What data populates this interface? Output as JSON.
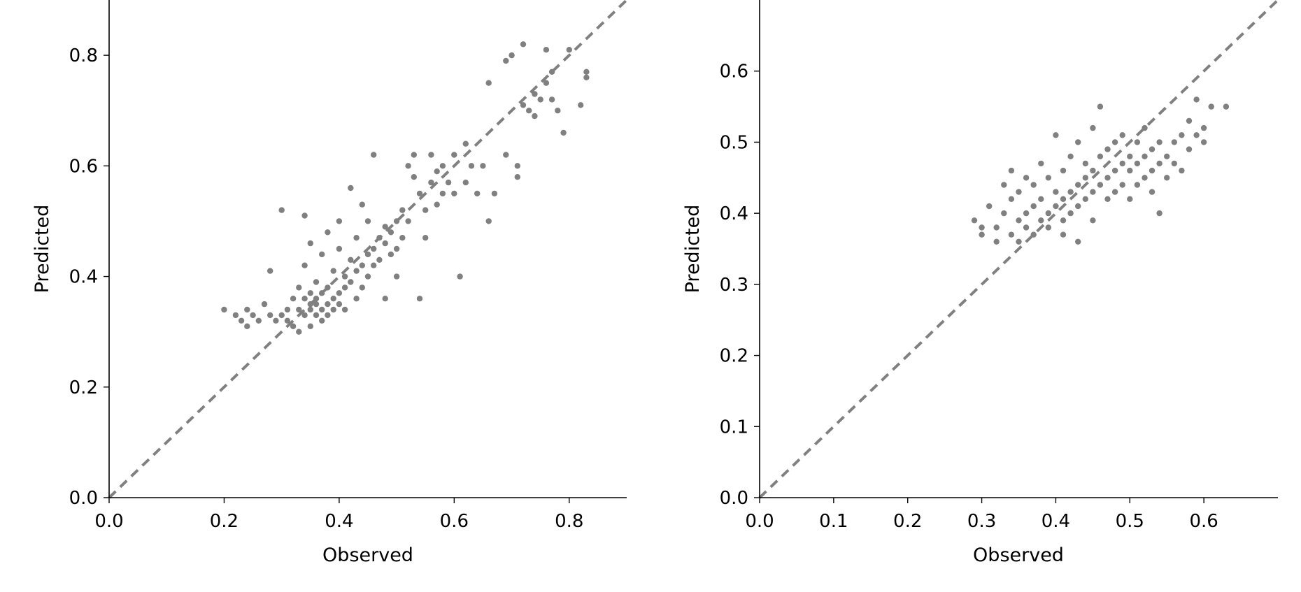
{
  "chart_data": [
    {
      "type": "scatter",
      "title": "",
      "xlabel": "Observed",
      "ylabel": "Predicted",
      "xlim": [
        0.0,
        0.9
      ],
      "ylim": [
        0.0,
        0.9
      ],
      "xticks": [
        "0.0",
        "0.2",
        "0.4",
        "0.6",
        "0.8"
      ],
      "yticks": [
        "0.0",
        "0.2",
        "0.4",
        "0.6",
        "0.8"
      ],
      "xtick_values": [
        0.0,
        0.2,
        0.4,
        0.6,
        0.8
      ],
      "ytick_values": [
        0.0,
        0.2,
        0.4,
        0.6,
        0.8
      ],
      "grid": false,
      "reference_line": "y = x (dashed)",
      "colors": {
        "points": "#808080",
        "reference_line": "#808080",
        "axes": "#000000"
      },
      "series": [
        {
          "points": [
            [
              0.2,
              0.34
            ],
            [
              0.22,
              0.33
            ],
            [
              0.23,
              0.32
            ],
            [
              0.24,
              0.34
            ],
            [
              0.25,
              0.33
            ],
            [
              0.24,
              0.31
            ],
            [
              0.26,
              0.32
            ],
            [
              0.27,
              0.35
            ],
            [
              0.28,
              0.33
            ],
            [
              0.29,
              0.32
            ],
            [
              0.3,
              0.52
            ],
            [
              0.28,
              0.41
            ],
            [
              0.3,
              0.33
            ],
            [
              0.31,
              0.34
            ],
            [
              0.31,
              0.32
            ],
            [
              0.32,
              0.31
            ],
            [
              0.32,
              0.36
            ],
            [
              0.33,
              0.34
            ],
            [
              0.33,
              0.38
            ],
            [
              0.33,
              0.3
            ],
            [
              0.34,
              0.33
            ],
            [
              0.34,
              0.36
            ],
            [
              0.34,
              0.42
            ],
            [
              0.34,
              0.51
            ],
            [
              0.35,
              0.35
            ],
            [
              0.35,
              0.34
            ],
            [
              0.35,
              0.37
            ],
            [
              0.35,
              0.31
            ],
            [
              0.35,
              0.46
            ],
            [
              0.36,
              0.33
            ],
            [
              0.36,
              0.36
            ],
            [
              0.36,
              0.39
            ],
            [
              0.36,
              0.35
            ],
            [
              0.37,
              0.34
            ],
            [
              0.37,
              0.37
            ],
            [
              0.37,
              0.32
            ],
            [
              0.37,
              0.44
            ],
            [
              0.38,
              0.35
            ],
            [
              0.38,
              0.33
            ],
            [
              0.38,
              0.38
            ],
            [
              0.38,
              0.48
            ],
            [
              0.39,
              0.36
            ],
            [
              0.39,
              0.34
            ],
            [
              0.39,
              0.41
            ],
            [
              0.4,
              0.37
            ],
            [
              0.4,
              0.35
            ],
            [
              0.4,
              0.45
            ],
            [
              0.4,
              0.5
            ],
            [
              0.41,
              0.38
            ],
            [
              0.41,
              0.4
            ],
            [
              0.41,
              0.34
            ],
            [
              0.42,
              0.43
            ],
            [
              0.42,
              0.39
            ],
            [
              0.42,
              0.56
            ],
            [
              0.43,
              0.41
            ],
            [
              0.43,
              0.36
            ],
            [
              0.43,
              0.47
            ],
            [
              0.44,
              0.42
            ],
            [
              0.44,
              0.38
            ],
            [
              0.44,
              0.53
            ],
            [
              0.45,
              0.44
            ],
            [
              0.45,
              0.4
            ],
            [
              0.45,
              0.5
            ],
            [
              0.46,
              0.45
            ],
            [
              0.46,
              0.42
            ],
            [
              0.46,
              0.62
            ],
            [
              0.47,
              0.47
            ],
            [
              0.47,
              0.43
            ],
            [
              0.48,
              0.46
            ],
            [
              0.48,
              0.49
            ],
            [
              0.48,
              0.36
            ],
            [
              0.49,
              0.44
            ],
            [
              0.49,
              0.48
            ],
            [
              0.5,
              0.45
            ],
            [
              0.5,
              0.4
            ],
            [
              0.5,
              0.5
            ],
            [
              0.51,
              0.47
            ],
            [
              0.51,
              0.52
            ],
            [
              0.52,
              0.6
            ],
            [
              0.52,
              0.5
            ],
            [
              0.53,
              0.58
            ],
            [
              0.53,
              0.62
            ],
            [
              0.54,
              0.55
            ],
            [
              0.54,
              0.36
            ],
            [
              0.55,
              0.52
            ],
            [
              0.55,
              0.47
            ],
            [
              0.56,
              0.57
            ],
            [
              0.56,
              0.62
            ],
            [
              0.57,
              0.53
            ],
            [
              0.57,
              0.59
            ],
            [
              0.58,
              0.55
            ],
            [
              0.58,
              0.6
            ],
            [
              0.59,
              0.57
            ],
            [
              0.6,
              0.62
            ],
            [
              0.6,
              0.55
            ],
            [
              0.61,
              0.4
            ],
            [
              0.62,
              0.57
            ],
            [
              0.62,
              0.64
            ],
            [
              0.63,
              0.6
            ],
            [
              0.64,
              0.55
            ],
            [
              0.65,
              0.6
            ],
            [
              0.66,
              0.75
            ],
            [
              0.66,
              0.5
            ],
            [
              0.67,
              0.55
            ],
            [
              0.69,
              0.62
            ],
            [
              0.69,
              0.79
            ],
            [
              0.7,
              0.8
            ],
            [
              0.71,
              0.58
            ],
            [
              0.71,
              0.6
            ],
            [
              0.72,
              0.71
            ],
            [
              0.72,
              0.82
            ],
            [
              0.73,
              0.7
            ],
            [
              0.74,
              0.73
            ],
            [
              0.74,
              0.69
            ],
            [
              0.75,
              0.72
            ],
            [
              0.76,
              0.75
            ],
            [
              0.76,
              0.81
            ],
            [
              0.77,
              0.72
            ],
            [
              0.77,
              0.77
            ],
            [
              0.78,
              0.7
            ],
            [
              0.79,
              0.66
            ],
            [
              0.8,
              0.81
            ],
            [
              0.82,
              0.71
            ],
            [
              0.83,
              0.77
            ],
            [
              0.83,
              0.76
            ]
          ]
        }
      ]
    },
    {
      "type": "scatter",
      "title": "",
      "xlabel": "Observed",
      "ylabel": "Predicted",
      "xlim": [
        0.0,
        0.7
      ],
      "ylim": [
        0.0,
        0.7
      ],
      "xticks": [
        "0.0",
        "0.1",
        "0.2",
        "0.3",
        "0.4",
        "0.5",
        "0.6"
      ],
      "yticks": [
        "0.0",
        "0.1",
        "0.2",
        "0.3",
        "0.4",
        "0.5",
        "0.6"
      ],
      "xtick_values": [
        0.0,
        0.1,
        0.2,
        0.3,
        0.4,
        0.5,
        0.6
      ],
      "ytick_values": [
        0.0,
        0.1,
        0.2,
        0.3,
        0.4,
        0.5,
        0.6
      ],
      "grid": false,
      "reference_line": "y = x (dashed)",
      "colors": {
        "points": "#808080",
        "reference_line": "#808080",
        "axes": "#000000"
      },
      "series": [
        {
          "points": [
            [
              0.29,
              0.39
            ],
            [
              0.3,
              0.37
            ],
            [
              0.3,
              0.38
            ],
            [
              0.31,
              0.41
            ],
            [
              0.32,
              0.36
            ],
            [
              0.32,
              0.38
            ],
            [
              0.33,
              0.4
            ],
            [
              0.33,
              0.44
            ],
            [
              0.34,
              0.37
            ],
            [
              0.34,
              0.42
            ],
            [
              0.34,
              0.46
            ],
            [
              0.35,
              0.39
            ],
            [
              0.35,
              0.36
            ],
            [
              0.35,
              0.43
            ],
            [
              0.36,
              0.4
            ],
            [
              0.36,
              0.38
            ],
            [
              0.36,
              0.45
            ],
            [
              0.37,
              0.41
            ],
            [
              0.37,
              0.37
            ],
            [
              0.37,
              0.44
            ],
            [
              0.38,
              0.39
            ],
            [
              0.38,
              0.42
            ],
            [
              0.38,
              0.47
            ],
            [
              0.39,
              0.4
            ],
            [
              0.39,
              0.38
            ],
            [
              0.39,
              0.45
            ],
            [
              0.4,
              0.41
            ],
            [
              0.4,
              0.43
            ],
            [
              0.4,
              0.51
            ],
            [
              0.41,
              0.39
            ],
            [
              0.41,
              0.42
            ],
            [
              0.41,
              0.46
            ],
            [
              0.41,
              0.37
            ],
            [
              0.42,
              0.43
            ],
            [
              0.42,
              0.4
            ],
            [
              0.42,
              0.48
            ],
            [
              0.43,
              0.44
            ],
            [
              0.43,
              0.41
            ],
            [
              0.43,
              0.5
            ],
            [
              0.43,
              0.36
            ],
            [
              0.44,
              0.45
            ],
            [
              0.44,
              0.42
            ],
            [
              0.44,
              0.47
            ],
            [
              0.45,
              0.43
            ],
            [
              0.45,
              0.46
            ],
            [
              0.45,
              0.52
            ],
            [
              0.45,
              0.39
            ],
            [
              0.46,
              0.44
            ],
            [
              0.46,
              0.48
            ],
            [
              0.46,
              0.55
            ],
            [
              0.47,
              0.45
            ],
            [
              0.47,
              0.42
            ],
            [
              0.47,
              0.49
            ],
            [
              0.48,
              0.46
            ],
            [
              0.48,
              0.43
            ],
            [
              0.48,
              0.5
            ],
            [
              0.49,
              0.47
            ],
            [
              0.49,
              0.44
            ],
            [
              0.49,
              0.51
            ],
            [
              0.5,
              0.46
            ],
            [
              0.5,
              0.48
            ],
            [
              0.5,
              0.42
            ],
            [
              0.51,
              0.47
            ],
            [
              0.51,
              0.5
            ],
            [
              0.51,
              0.44
            ],
            [
              0.52,
              0.48
            ],
            [
              0.52,
              0.45
            ],
            [
              0.52,
              0.52
            ],
            [
              0.53,
              0.46
            ],
            [
              0.53,
              0.43
            ],
            [
              0.53,
              0.49
            ],
            [
              0.54,
              0.47
            ],
            [
              0.54,
              0.4
            ],
            [
              0.54,
              0.5
            ],
            [
              0.55,
              0.48
            ],
            [
              0.55,
              0.45
            ],
            [
              0.56,
              0.5
            ],
            [
              0.56,
              0.47
            ],
            [
              0.57,
              0.51
            ],
            [
              0.57,
              0.46
            ],
            [
              0.58,
              0.49
            ],
            [
              0.58,
              0.53
            ],
            [
              0.59,
              0.51
            ],
            [
              0.59,
              0.56
            ],
            [
              0.6,
              0.52
            ],
            [
              0.6,
              0.5
            ],
            [
              0.61,
              0.55
            ],
            [
              0.63,
              0.55
            ]
          ]
        }
      ]
    }
  ]
}
